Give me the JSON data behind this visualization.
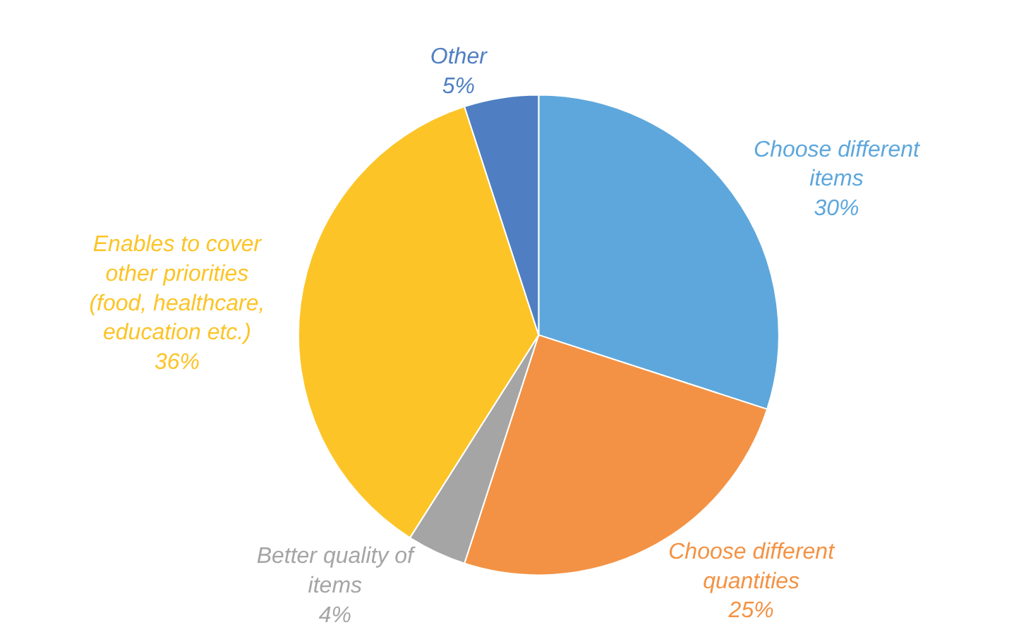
{
  "chart_data": {
    "type": "pie",
    "categories": [
      "Choose different items",
      "Choose different quantities",
      "Better quality of items",
      "Enables to cover other priorities (food, healthcare, education etc.)",
      "Other"
    ],
    "values": [
      30,
      25,
      4,
      36,
      5
    ],
    "value_labels": [
      "30%",
      "25%",
      "4%",
      "36%",
      "5%"
    ],
    "colors": [
      "#5ea7dc",
      "#f39244",
      "#a5a5a5",
      "#fcc427",
      "#4f7fc2"
    ],
    "legend": false
  }
}
